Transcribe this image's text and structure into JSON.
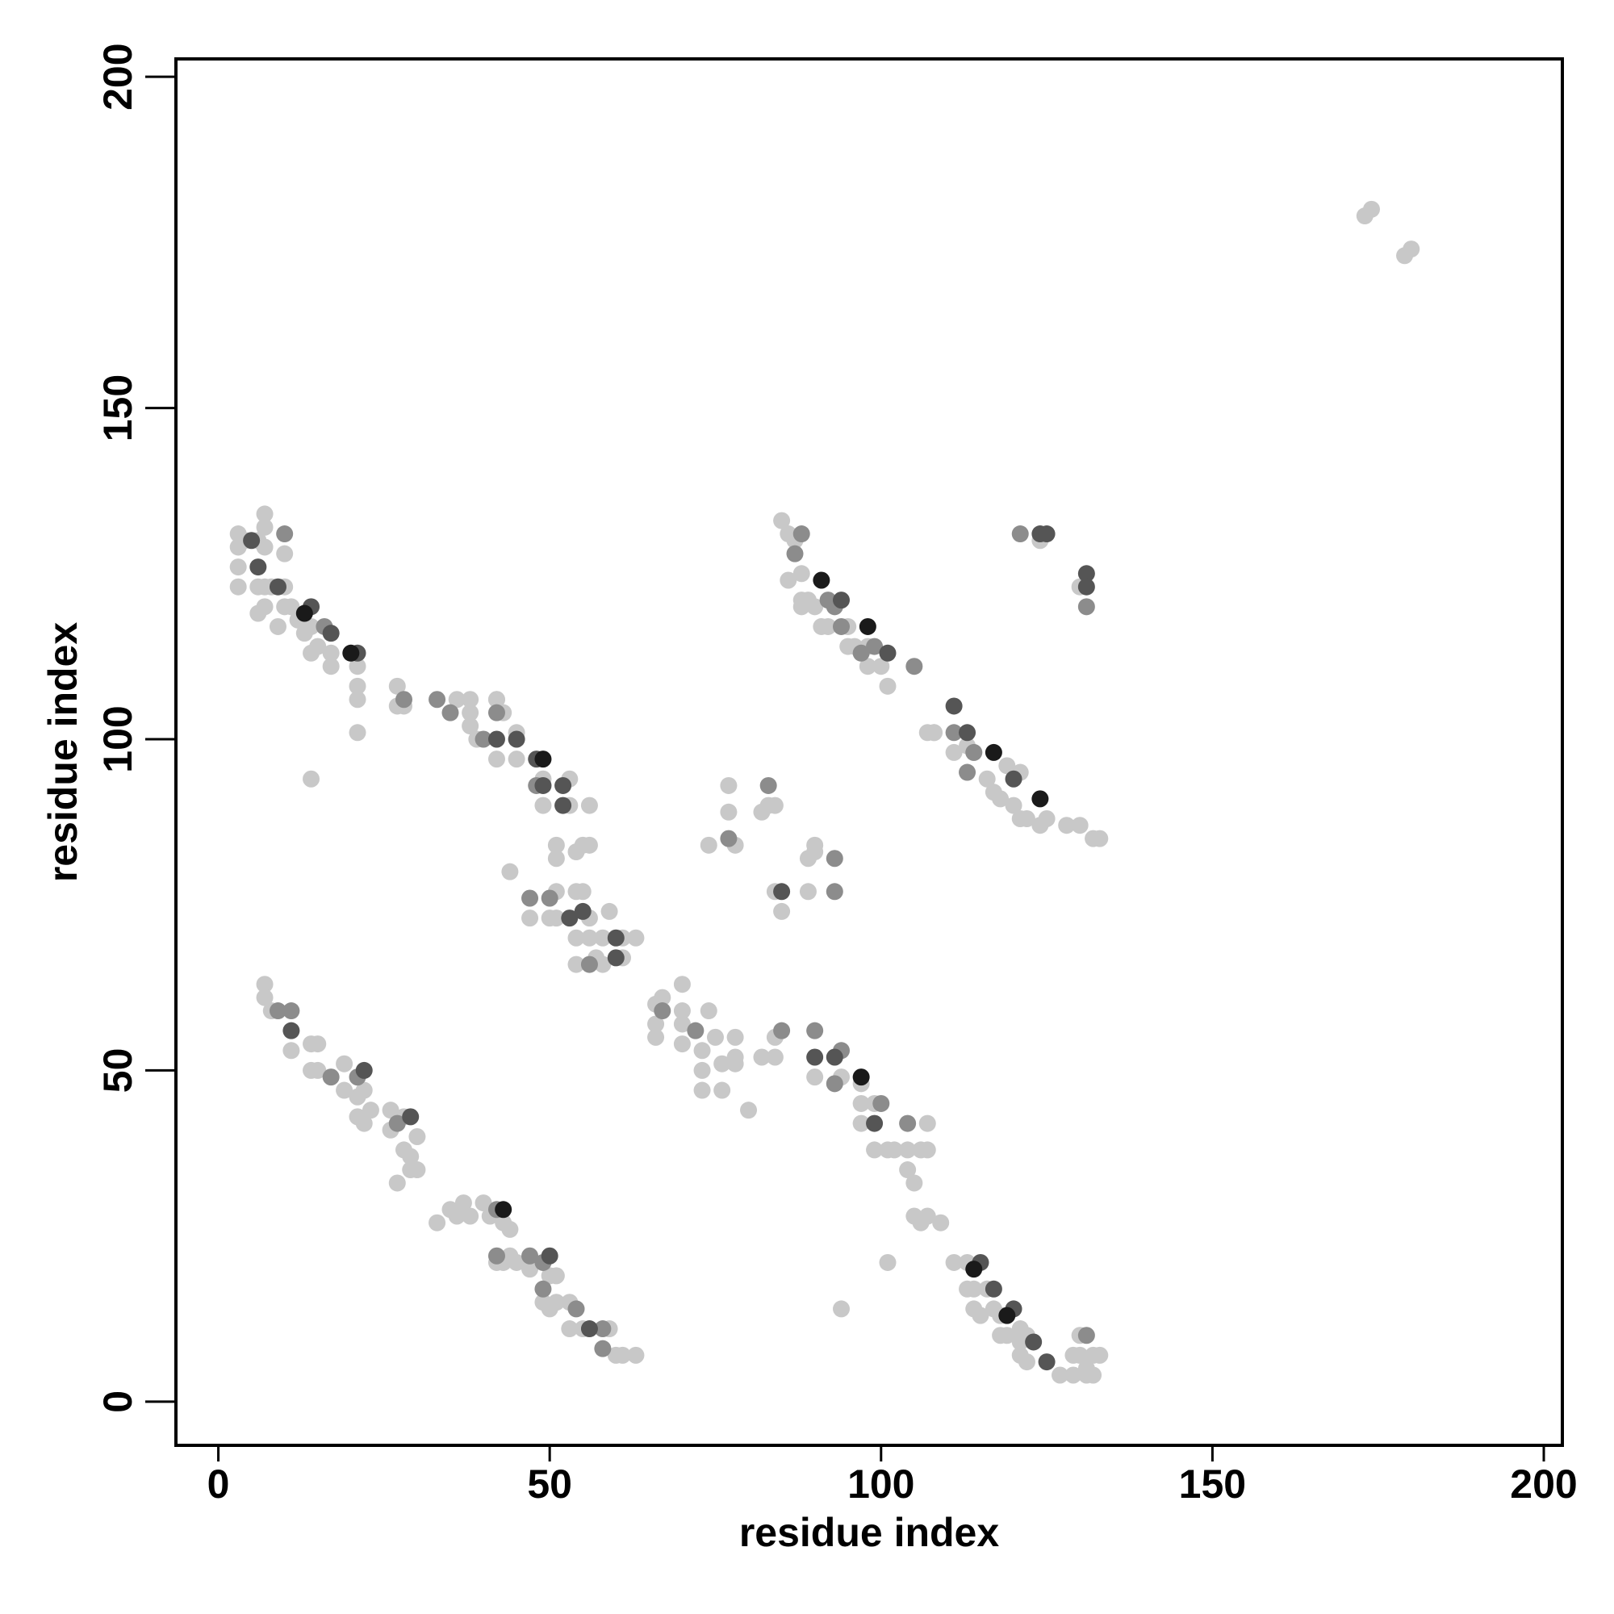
{
  "chart_data": {
    "type": "scatter",
    "xlabel": "residue index",
    "ylabel": "residue index",
    "xlim": [
      -6.4,
      202.8
    ],
    "ylim": [
      -6.6,
      202.7
    ],
    "xticks": [
      0,
      50,
      100,
      150,
      200
    ],
    "yticks": [
      0,
      50,
      100,
      150,
      200
    ],
    "series": [
      {
        "color": "#c8c8c8",
        "x": [
          173,
          174,
          179,
          180,
          3,
          3,
          3,
          3,
          4,
          6,
          7,
          7,
          7,
          7,
          6,
          7,
          6,
          8,
          10,
          10,
          10,
          9,
          11,
          12,
          14,
          13,
          14,
          15,
          17,
          17,
          21,
          21,
          21,
          21,
          14,
          27,
          27,
          28,
          36,
          38,
          38,
          38,
          39,
          42,
          43,
          42,
          42,
          45,
          45,
          49,
          49,
          53,
          53,
          56,
          51,
          51,
          55,
          56,
          54,
          44,
          51,
          54,
          55,
          47,
          50,
          51,
          56,
          59,
          54,
          56,
          58,
          61,
          63,
          54,
          57,
          58,
          61,
          74,
          77,
          77,
          78,
          82,
          83,
          84,
          84,
          85,
          89,
          89,
          90,
          90,
          85,
          86,
          87,
          86,
          88,
          88,
          88,
          89,
          90,
          91,
          92,
          95,
          95,
          96,
          98,
          98,
          100,
          101,
          108,
          107,
          108,
          111,
          113,
          114,
          116,
          117,
          118,
          119,
          121,
          120,
          121,
          122,
          124,
          125,
          128,
          130,
          132,
          133,
          124,
          130,
          7,
          7,
          8,
          11,
          14,
          15,
          14,
          15,
          19,
          19,
          21,
          22,
          21,
          22,
          23,
          26,
          26,
          28,
          28,
          29,
          30,
          29,
          30,
          27,
          33,
          35,
          36,
          37,
          38,
          40,
          41,
          43,
          44,
          42,
          43,
          44,
          45,
          47,
          50,
          51,
          49,
          50,
          51,
          53,
          53,
          55,
          59,
          60,
          61,
          63,
          66,
          66,
          66,
          67,
          70,
          70,
          70,
          70,
          73,
          73,
          73,
          74,
          75,
          76,
          76,
          78,
          78,
          78,
          80,
          82,
          84,
          84,
          90,
          94,
          97,
          97,
          97,
          99,
          99,
          101,
          102,
          104,
          106,
          107,
          107,
          104,
          105,
          105,
          106,
          107,
          109,
          111,
          113,
          113,
          114,
          116,
          114,
          115,
          117,
          118,
          118,
          119,
          121,
          121,
          122,
          121,
          122,
          127,
          129,
          129,
          130,
          130,
          131,
          132,
          133,
          131,
          132,
          101,
          94
        ],
        "y": [
          179,
          180,
          173,
          174,
          131,
          129,
          126,
          123,
          130,
          130,
          134,
          132,
          129,
          123,
          123,
          120,
          119,
          123,
          128,
          123,
          120,
          117,
          120,
          118,
          117,
          116,
          113,
          114,
          113,
          111,
          111,
          108,
          106,
          101,
          94,
          108,
          105,
          105,
          106,
          106,
          104,
          102,
          100,
          106,
          104,
          106,
          97,
          97,
          101,
          94,
          90,
          94,
          90,
          90,
          84,
          82,
          84,
          84,
          83,
          80,
          77,
          77,
          77,
          73,
          73,
          73,
          73,
          74,
          70,
          70,
          70,
          70,
          70,
          66,
          67,
          66,
          67,
          84,
          93,
          89,
          84,
          89,
          90,
          90,
          77,
          74,
          77,
          82,
          83,
          84,
          133,
          131,
          130,
          124,
          125,
          121,
          120,
          121,
          120,
          117,
          117,
          117,
          114,
          114,
          114,
          111,
          111,
          108,
          101,
          101,
          101,
          98,
          99,
          98,
          94,
          92,
          91,
          96,
          95,
          90,
          88,
          88,
          87,
          88,
          87,
          87,
          85,
          85,
          130,
          123,
          63,
          61,
          59,
          53,
          54,
          54,
          50,
          50,
          51,
          47,
          46,
          47,
          43,
          42,
          44,
          44,
          41,
          43,
          38,
          37,
          40,
          35,
          35,
          33,
          27,
          29,
          28,
          30,
          28,
          30,
          28,
          27,
          26,
          21,
          21,
          22,
          21,
          20,
          19,
          19,
          15,
          14,
          15,
          15,
          11,
          11,
          11,
          7,
          7,
          7,
          60,
          57,
          55,
          61,
          63,
          59,
          57,
          54,
          53,
          50,
          47,
          59,
          55,
          47,
          51,
          55,
          52,
          51,
          44,
          52,
          55,
          52,
          49,
          49,
          48,
          45,
          42,
          45,
          38,
          38,
          38,
          38,
          38,
          42,
          38,
          35,
          33,
          28,
          27,
          28,
          27,
          21,
          21,
          17,
          17,
          17,
          14,
          13,
          14,
          13,
          10,
          10,
          11,
          9,
          10,
          7,
          6,
          4,
          4,
          7,
          7,
          10,
          5,
          7,
          7,
          4,
          4,
          21,
          14
        ]
      },
      {
        "color": "#8c8c8c",
        "x": [
          10,
          16,
          28,
          33,
          35,
          40,
          42,
          48,
          47,
          50,
          56,
          77,
          83,
          93,
          93,
          88,
          87,
          92,
          93,
          94,
          97,
          99,
          105,
          111,
          114,
          113,
          121,
          131,
          9,
          11,
          17,
          21,
          27,
          42,
          42,
          47,
          49,
          49,
          54,
          58,
          58,
          67,
          72,
          85,
          90,
          93,
          94,
          100,
          104,
          131
        ],
        "y": [
          131,
          117,
          106,
          106,
          104,
          100,
          104,
          93,
          76,
          76,
          66,
          85,
          93,
          82,
          77,
          131,
          128,
          121,
          120,
          117,
          113,
          114,
          111,
          101,
          98,
          95,
          131,
          120,
          59,
          59,
          49,
          49,
          42,
          29,
          22,
          22,
          21,
          17,
          14,
          11,
          8,
          59,
          56,
          56,
          56,
          48,
          53,
          45,
          42,
          10
        ]
      },
      {
        "color": "#555555",
        "x": [
          5,
          6,
          9,
          14,
          17,
          21,
          42,
          45,
          48,
          49,
          52,
          52,
          60,
          60,
          85,
          94,
          101,
          111,
          113,
          120,
          124,
          125,
          131,
          131,
          11,
          22,
          29,
          50,
          56,
          90,
          93,
          99,
          115,
          117,
          120,
          123,
          125,
          53,
          55
        ],
        "y": [
          130,
          126,
          123,
          120,
          116,
          113,
          100,
          100,
          97,
          93,
          93,
          90,
          70,
          67,
          77,
          121,
          113,
          105,
          101,
          94,
          131,
          131,
          125,
          123,
          56,
          50,
          43,
          22,
          11,
          52,
          52,
          42,
          21,
          17,
          14,
          9,
          6,
          73,
          74
        ]
      },
      {
        "color": "#1a1a1a",
        "x": [
          13,
          20,
          49,
          91,
          98,
          117,
          124,
          43,
          97,
          114,
          119
        ],
        "y": [
          119,
          113,
          97,
          124,
          117,
          98,
          91,
          29,
          49,
          20,
          13
        ]
      }
    ]
  }
}
